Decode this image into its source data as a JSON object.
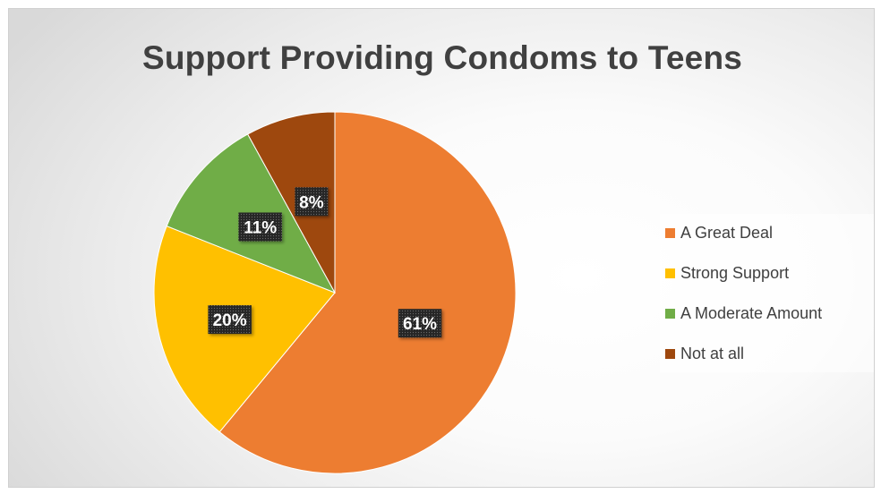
{
  "chart_data": {
    "type": "pie",
    "title": "Support Providing Condoms to Teens",
    "categories": [
      "A Great Deal",
      "Strong Support",
      "A Moderate Amount",
      "Not at all"
    ],
    "values": [
      61,
      20,
      11,
      8
    ],
    "labels": [
      "61%",
      "20%",
      "11%",
      "8%"
    ],
    "colors": [
      "#ed7d31",
      "#ffc000",
      "#70ad47",
      "#9e480e"
    ],
    "legend_position": "right"
  }
}
